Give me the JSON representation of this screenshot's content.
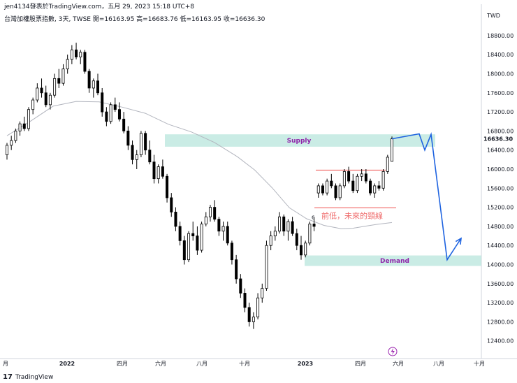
{
  "header": {
    "publish_line": "jen4134發表於TradingView.com，五月 29, 2023 15:18 UTC+8",
    "symbol_line": "台灣加權股票指數, 3天, TWSE  開=16163.95  高=16683.76  低=16163.95  收=16636.30"
  },
  "footer": {
    "brand": "TradingView",
    "logo": "17"
  },
  "chart_data": {
    "type": "candlestick",
    "currency": "TWD",
    "y_ticks": [
      18800,
      18400,
      18000,
      17600,
      17200,
      16800,
      16400,
      16000,
      15600,
      15200,
      14800,
      14400,
      14000,
      13600,
      13200,
      12800,
      12400
    ],
    "ylim": [
      12150,
      19300
    ],
    "last_price": "16636.30",
    "x_ticks": [
      "月",
      "2022",
      "四月",
      "六月",
      "八月",
      "十月",
      "2023",
      "四月",
      "六月",
      "八月",
      "十月"
    ],
    "annotations": {
      "supply_label": "Supply",
      "demand_label": "Demand",
      "neckline_label": "前低，未來的頸線",
      "small_marker": "6",
      "event_icon": "lightning"
    },
    "supply_zone": [
      16470,
      16730
    ],
    "demand_zone": [
      13970,
      14190
    ],
    "resistance_line": 15980,
    "neckline": 15190,
    "ohlc": [
      [
        16300,
        16550,
        16200,
        16500
      ],
      [
        16500,
        16700,
        16400,
        16600
      ],
      [
        16600,
        16850,
        16550,
        16800
      ],
      [
        16800,
        17000,
        16700,
        16950
      ],
      [
        16950,
        17100,
        16800,
        16850
      ],
      [
        16850,
        17300,
        16800,
        17250
      ],
      [
        17250,
        17500,
        17150,
        17450
      ],
      [
        17450,
        17800,
        17400,
        17700
      ],
      [
        17700,
        17900,
        17500,
        17600
      ],
      [
        17600,
        17750,
        17300,
        17350
      ],
      [
        17350,
        17600,
        17250,
        17550
      ],
      [
        17550,
        18000,
        17500,
        17900
      ],
      [
        17900,
        18100,
        17700,
        17800
      ],
      [
        17800,
        18200,
        17750,
        18100
      ],
      [
        18100,
        18400,
        18000,
        18300
      ],
      [
        18300,
        18600,
        18200,
        18500
      ],
      [
        18500,
        18650,
        18300,
        18350
      ],
      [
        18350,
        18500,
        18200,
        18450
      ],
      [
        18450,
        18500,
        18000,
        18050
      ],
      [
        18050,
        18100,
        17600,
        17700
      ],
      [
        17700,
        17900,
        17500,
        17850
      ],
      [
        17850,
        18000,
        17550,
        17600
      ],
      [
        17600,
        17700,
        17100,
        17200
      ],
      [
        17200,
        17300,
        16900,
        17000
      ],
      [
        17000,
        17400,
        16950,
        17350
      ],
      [
        17350,
        17500,
        17200,
        17250
      ],
      [
        17250,
        17400,
        17000,
        17050
      ],
      [
        17050,
        17200,
        16750,
        16800
      ],
      [
        16800,
        16900,
        16400,
        16500
      ],
      [
        16500,
        16600,
        16100,
        16200
      ],
      [
        16200,
        16400,
        16000,
        16300
      ],
      [
        16300,
        16800,
        16250,
        16750
      ],
      [
        16750,
        16800,
        16300,
        16400
      ],
      [
        16400,
        16600,
        16100,
        16150
      ],
      [
        16150,
        16300,
        15700,
        15800
      ],
      [
        15800,
        16100,
        15700,
        16050
      ],
      [
        16050,
        16200,
        15800,
        15850
      ],
      [
        15850,
        15900,
        15300,
        15400
      ],
      [
        15400,
        15500,
        15000,
        15100
      ],
      [
        15100,
        15200,
        14700,
        14800
      ],
      [
        14800,
        14900,
        14400,
        14500
      ],
      [
        14500,
        14600,
        14000,
        14100
      ],
      [
        14100,
        14700,
        14050,
        14650
      ],
      [
        14650,
        14900,
        14500,
        14600
      ],
      [
        14600,
        14800,
        14200,
        14300
      ],
      [
        14300,
        14900,
        14250,
        14850
      ],
      [
        14850,
        15100,
        14800,
        15000
      ],
      [
        15000,
        15250,
        14900,
        15200
      ],
      [
        15200,
        15350,
        14900,
        14950
      ],
      [
        14950,
        15000,
        14600,
        14700
      ],
      [
        14700,
        14900,
        14500,
        14800
      ],
      [
        14800,
        14900,
        14400,
        14450
      ],
      [
        14450,
        14500,
        14000,
        14100
      ],
      [
        14100,
        14200,
        13600,
        13700
      ],
      [
        13700,
        13800,
        13300,
        13400
      ],
      [
        13400,
        13500,
        13000,
        13100
      ],
      [
        13100,
        13200,
        12700,
        12800
      ],
      [
        12800,
        13000,
        12650,
        12900
      ],
      [
        12900,
        13400,
        12850,
        13300
      ],
      [
        13300,
        13600,
        13200,
        13500
      ],
      [
        13500,
        14500,
        13450,
        14400
      ],
      [
        14400,
        14700,
        14300,
        14600
      ],
      [
        14600,
        14800,
        14500,
        14700
      ],
      [
        14700,
        15100,
        14650,
        15000
      ],
      [
        15000,
        15050,
        14600,
        14700
      ],
      [
        14700,
        14950,
        14500,
        14900
      ],
      [
        14900,
        15000,
        14600,
        14650
      ],
      [
        14650,
        14750,
        14300,
        14400
      ],
      [
        14400,
        14600,
        14100,
        14200
      ],
      [
        14200,
        14500,
        14150,
        14450
      ],
      [
        14450,
        14900,
        14400,
        14850
      ],
      [
        14850,
        15000,
        14700,
        14800
      ],
      [
        15500,
        15700,
        15400,
        15650
      ],
      [
        15650,
        15700,
        15450,
        15500
      ],
      [
        15500,
        15800,
        15450,
        15750
      ],
      [
        15750,
        15900,
        15600,
        15650
      ],
      [
        15650,
        15700,
        15350,
        15400
      ],
      [
        15400,
        15700,
        15350,
        15650
      ],
      [
        15650,
        16000,
        15600,
        15950
      ],
      [
        15950,
        16050,
        15700,
        15750
      ],
      [
        15750,
        15900,
        15500,
        15550
      ],
      [
        15550,
        15900,
        15500,
        15850
      ],
      [
        15850,
        16000,
        15750,
        15900
      ],
      [
        15900,
        16000,
        15700,
        15750
      ],
      [
        15750,
        15800,
        15450,
        15500
      ],
      [
        15500,
        15700,
        15400,
        15650
      ],
      [
        15650,
        15750,
        15550,
        15600
      ],
      [
        15600,
        16000,
        15550,
        15950
      ],
      [
        15950,
        16300,
        15900,
        16250
      ],
      [
        16163.95,
        16683.76,
        16163.95,
        16636.3
      ]
    ],
    "ma": [
      [
        0,
        16700
      ],
      [
        20,
        17000
      ],
      [
        40,
        17320
      ],
      [
        60,
        17420
      ],
      [
        80,
        17410
      ],
      [
        100,
        17300
      ],
      [
        120,
        17170
      ],
      [
        140,
        16940
      ],
      [
        160,
        16780
      ],
      [
        180,
        16560
      ],
      [
        200,
        16260
      ],
      [
        215,
        15980
      ],
      [
        230,
        15610
      ],
      [
        245,
        15190
      ],
      [
        260,
        14960
      ],
      [
        275,
        14820
      ],
      [
        290,
        14750
      ],
      [
        300,
        14760
      ],
      [
        310,
        14800
      ],
      [
        320,
        14840
      ],
      [
        334,
        14880
      ]
    ],
    "forecast_path": [
      [
        "last",
        16636.3
      ],
      [
        600,
        16740
      ],
      [
        608,
        16400
      ],
      [
        617,
        16730
      ],
      [
        640,
        14100
      ],
      [
        660,
        14550
      ]
    ]
  }
}
